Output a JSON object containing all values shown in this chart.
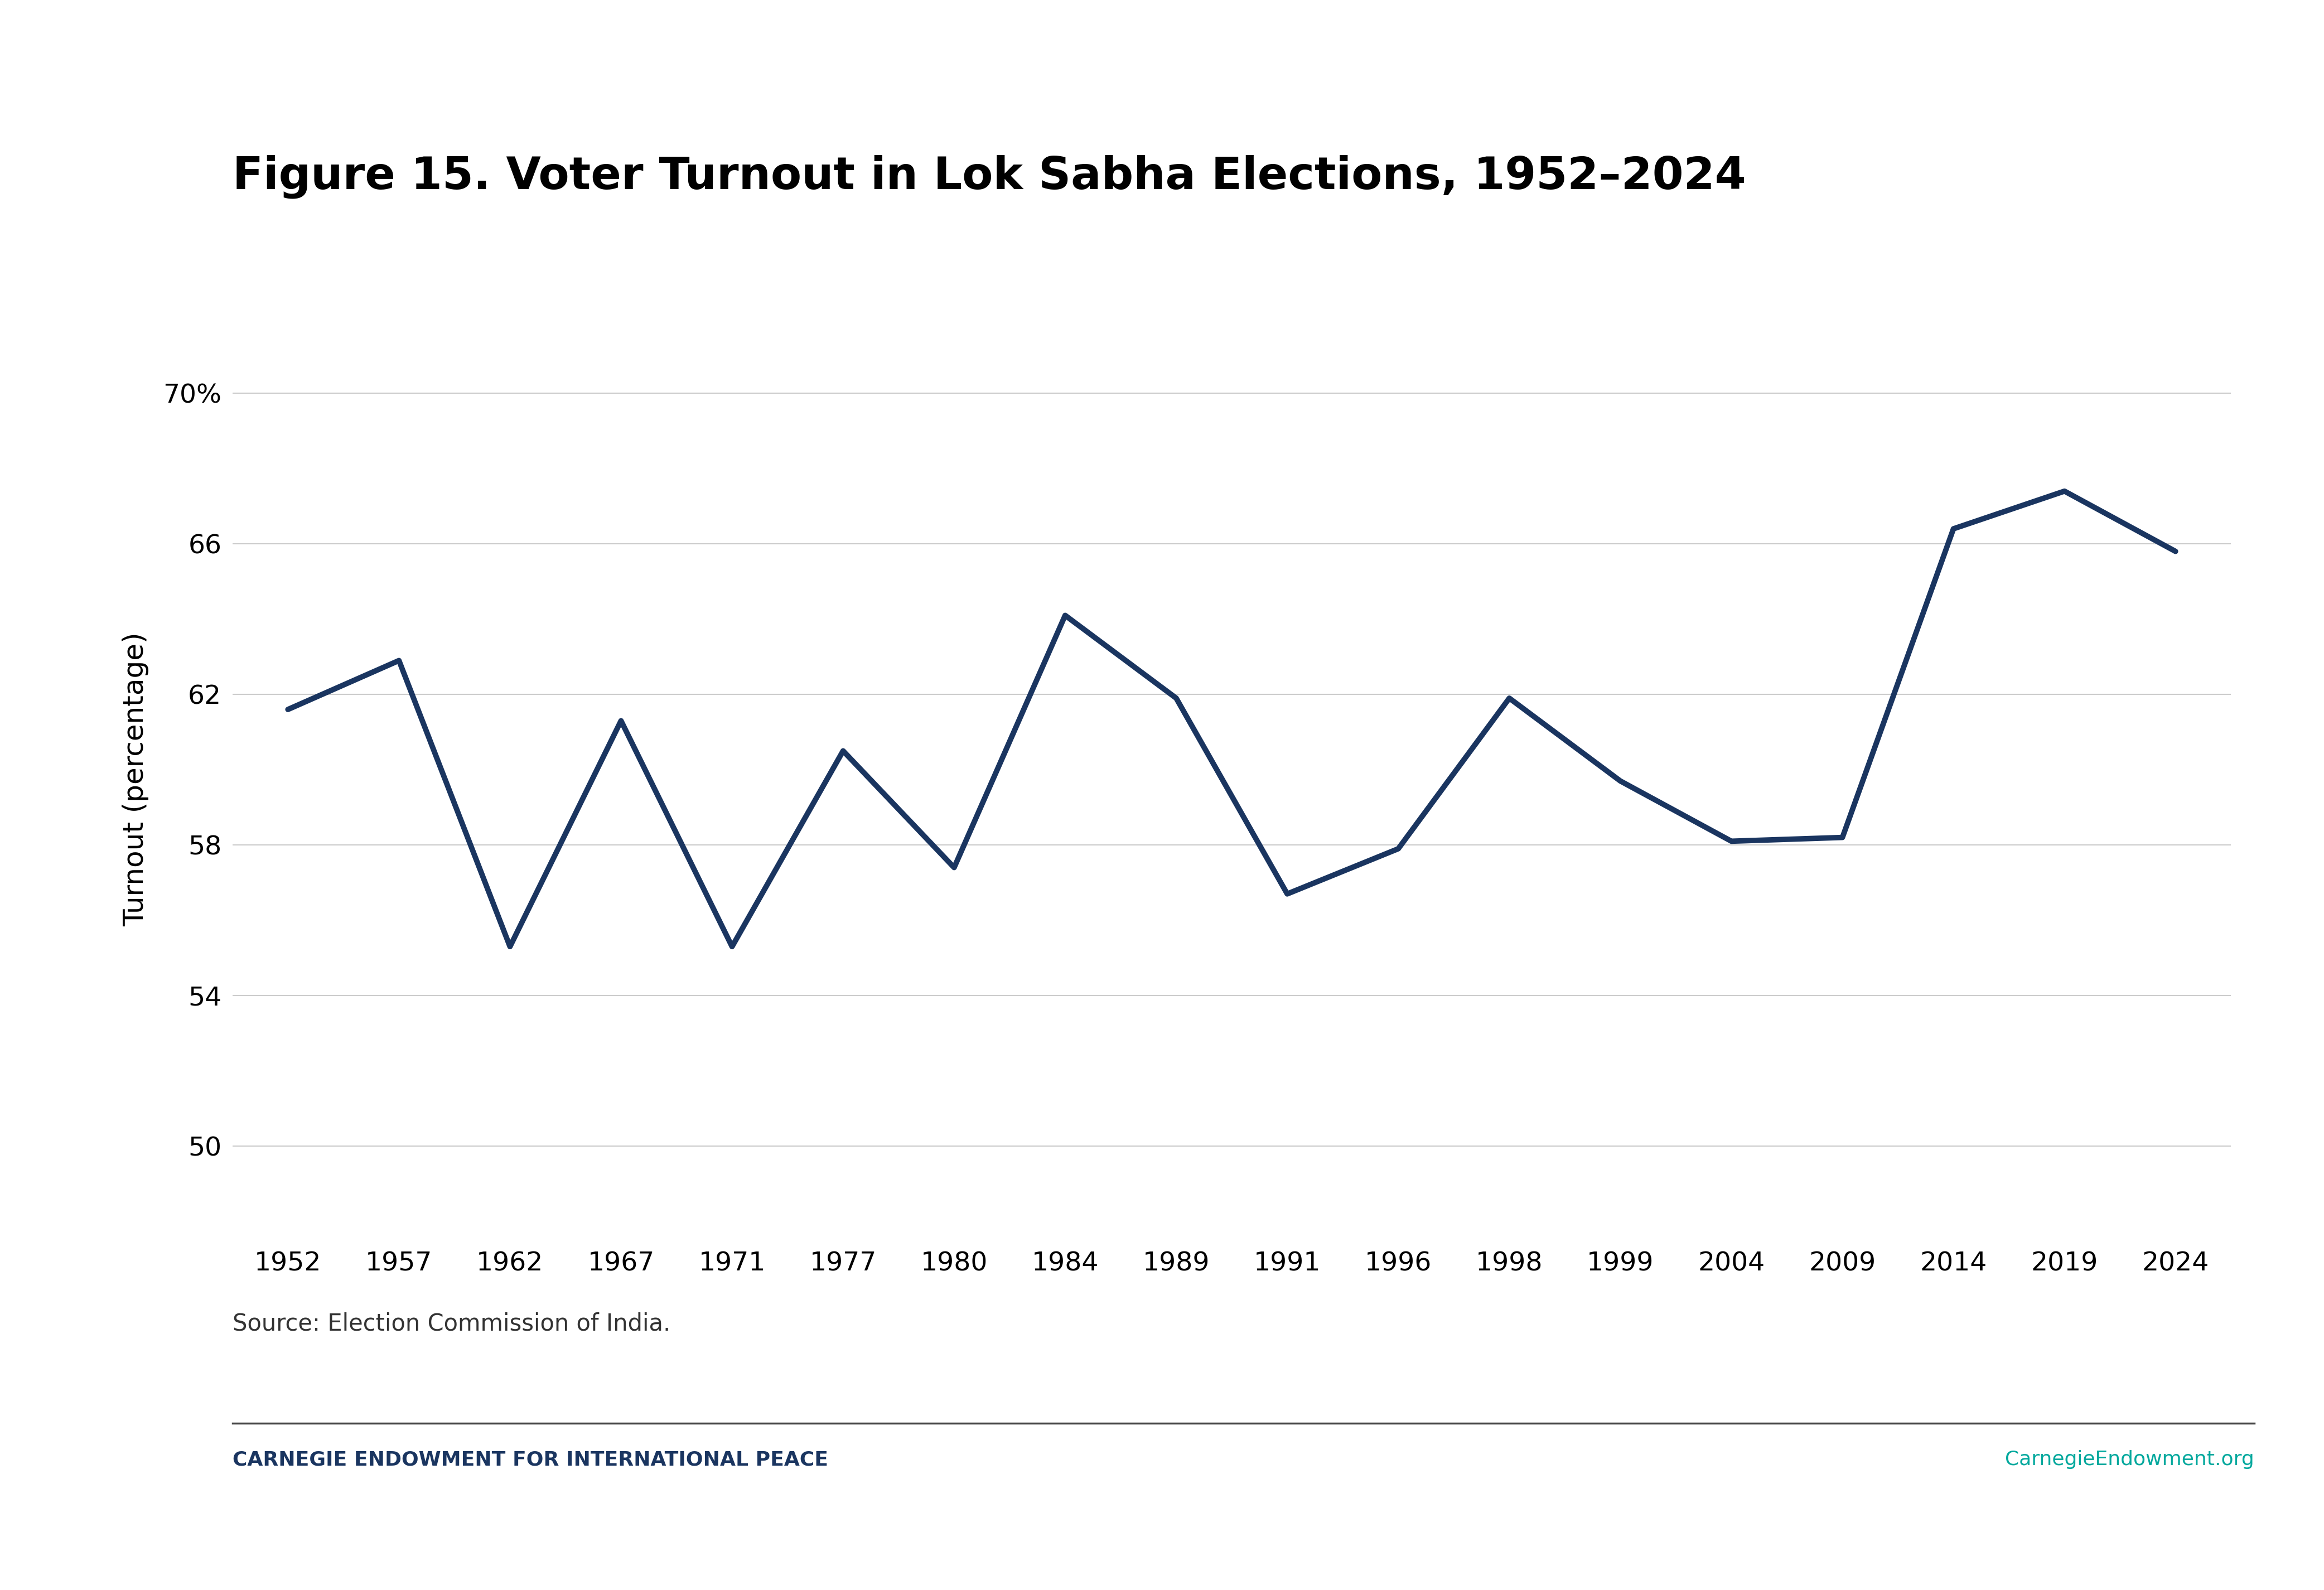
{
  "title": "Figure 15. Voter Turnout in Lok Sabha Elections, 1952–2024",
  "ylabel": "Turnout (percentage)",
  "source_text": "Source: Election Commission of India.",
  "footer_left": "CARNEGIE ENDOWMENT FOR INTERNATIONAL PEACE",
  "footer_right": "CarnegieEndowment.org",
  "year_labels": [
    "1952",
    "1957",
    "1962",
    "1967",
    "1971",
    "1977",
    "1980",
    "1984",
    "1989",
    "1991",
    "1996",
    "1998",
    "1999",
    "2004",
    "2009",
    "2014",
    "2019",
    "2024"
  ],
  "turnout": [
    61.6,
    62.9,
    55.3,
    61.3,
    55.3,
    60.5,
    57.4,
    64.1,
    61.9,
    56.7,
    57.9,
    61.9,
    59.7,
    58.1,
    58.2,
    66.4,
    67.4,
    65.8
  ],
  "yticks": [
    50,
    54,
    58,
    62,
    66,
    70
  ],
  "ytick_labels": [
    "50",
    "54",
    "58",
    "62",
    "66",
    "70%"
  ],
  "ylim": [
    47.5,
    72
  ],
  "line_color": "#1a3560",
  "line_width": 7,
  "grid_color": "#cccccc",
  "bg_color": "#ffffff",
  "title_fontsize": 58,
  "axis_label_fontsize": 36,
  "tick_fontsize": 34,
  "source_fontsize": 30,
  "footer_fontsize": 26,
  "footer_left_color": "#1a3560",
  "footer_right_color": "#00a89d",
  "footer_line_color": "#444444"
}
